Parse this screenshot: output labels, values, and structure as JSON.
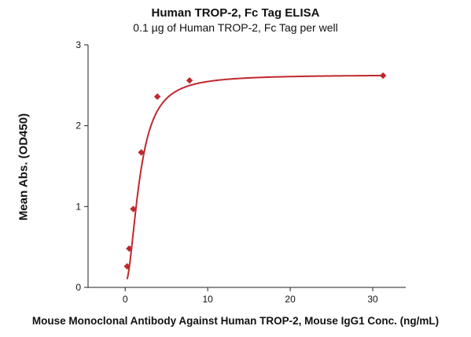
{
  "chart_data": {
    "type": "scatter",
    "title": "Human TROP-2, Fc Tag ELISA",
    "subtitle": "0.1 µg of Human TROP-2, Fc Tag per well",
    "xlabel": "Mouse Monoclonal Antibody Against Human TROP-2, Mouse IgG1 Conc. (ng/mL)",
    "ylabel": "Mean Abs. (OD450)",
    "xlim": [
      -4.5,
      34
    ],
    "ylim": [
      0,
      3
    ],
    "xticks": [
      0,
      10,
      20,
      30
    ],
    "yticks": [
      0,
      1,
      2,
      3
    ],
    "grid": false,
    "legend": "none",
    "marker": "diamond",
    "color": "#c0282d",
    "points": [
      {
        "x": 0.24,
        "y": 0.26
      },
      {
        "x": 0.49,
        "y": 0.48
      },
      {
        "x": 0.98,
        "y": 0.97
      },
      {
        "x": 1.95,
        "y": 1.67
      },
      {
        "x": 3.9,
        "y": 2.36
      },
      {
        "x": 7.8,
        "y": 2.56
      },
      {
        "x": 31.25,
        "y": 2.62
      }
    ],
    "fit_curve": true
  }
}
